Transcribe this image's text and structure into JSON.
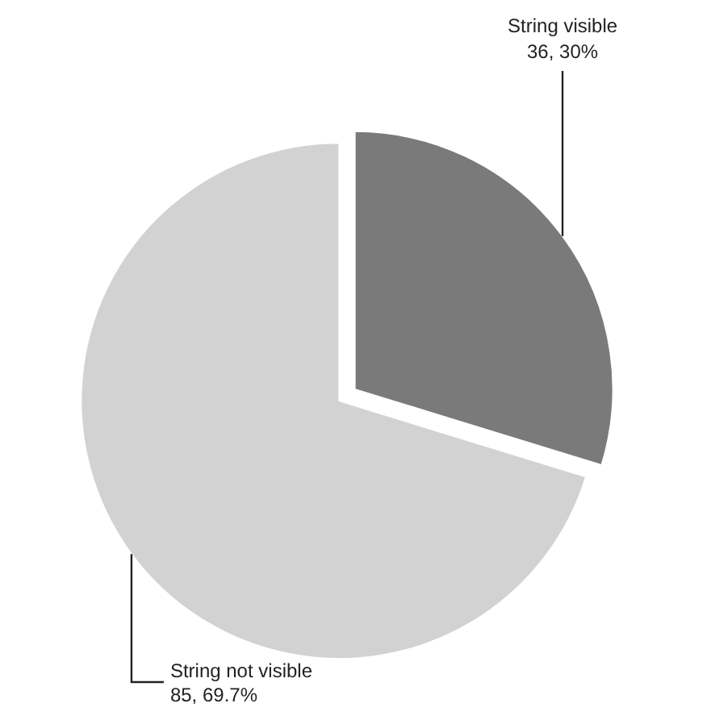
{
  "chart_data": {
    "type": "pie",
    "categories": [
      "String visible",
      "String not visible"
    ],
    "values": [
      36,
      85
    ],
    "colors": [
      "#7a7a7a",
      "#d2d2d2"
    ],
    "value_labels": [
      "36, 30%",
      "85, 69.7%"
    ]
  }
}
